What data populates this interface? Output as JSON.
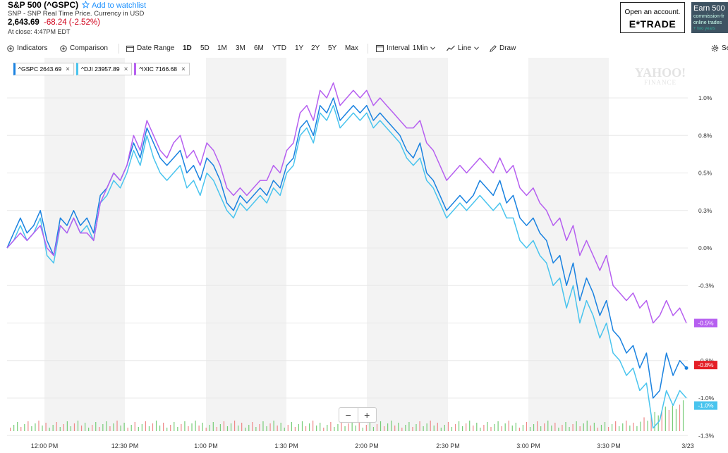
{
  "header": {
    "title": "S&P 500 (^GSPC)",
    "watchlist_label": "Add to watchlist",
    "subtitle": "SNP - SNP Real Time Price. Currency in USD",
    "price": "2,643.69",
    "change": "-68.24 (-2.52%)",
    "at_close": "At close: 4:47PM EDT"
  },
  "ads": {
    "etrade_line1": "Open an account.",
    "etrade_brand": "E*TRADE",
    "earn_line1": "Earn 500",
    "earn_line2": "commission-fr",
    "earn_line3": "online trades",
    "earn_line4": "+ two years"
  },
  "toolbar": {
    "indicators": "Indicators",
    "comparison": "Comparison",
    "date_range": "Date Range",
    "ranges": [
      "1D",
      "5D",
      "1M",
      "3M",
      "6M",
      "YTD",
      "1Y",
      "2Y",
      "5Y",
      "Max"
    ],
    "active_range": "1D",
    "interval_label": "Interval",
    "interval_value": "1Min",
    "line": "Line",
    "draw": "Draw",
    "settings": "Se"
  },
  "compare_tags": [
    {
      "label": "^GSPC 2643.69",
      "color": "#1a82e0"
    },
    {
      "label": "^DJI 23957.89",
      "color": "#49c4ee"
    },
    {
      "label": "^IXIC 7166.68",
      "color": "#b65ff0"
    }
  ],
  "watermark_line1": "YAHOO!",
  "watermark_line2": "FINANCE",
  "zoom": {
    "minus": "−",
    "plus": "+"
  },
  "chart_data": {
    "type": "line",
    "x_ticks": [
      "12:00 PM",
      "12:30 PM",
      "1:00 PM",
      "1:30 PM",
      "2:00 PM",
      "2:30 PM",
      "3:00 PM",
      "3:30 PM",
      "3/23"
    ],
    "y_ticks": [
      "1.0%",
      "0.8%",
      "0.5%",
      "0.3%",
      "0.0%",
      "-0.3%",
      "-0.5%",
      "-0.8%",
      "-1.0%",
      "-1.3%"
    ],
    "ylim": [
      -1.3,
      1.2
    ],
    "end_labels": [
      {
        "text": "-0.5%",
        "color": "#b65ff0"
      },
      {
        "text": "-0.8%",
        "color": "#e41e26"
      },
      {
        "text": "-1.0%",
        "color": "#49c4ee"
      }
    ],
    "series": [
      {
        "name": "^GSPC",
        "color": "#1a82e0",
        "values": [
          0.0,
          0.1,
          0.2,
          0.1,
          0.15,
          0.25,
          0.05,
          -0.05,
          0.2,
          0.15,
          0.25,
          0.15,
          0.2,
          0.1,
          0.35,
          0.4,
          0.5,
          0.45,
          0.55,
          0.7,
          0.6,
          0.8,
          0.7,
          0.6,
          0.55,
          0.6,
          0.65,
          0.5,
          0.55,
          0.45,
          0.6,
          0.55,
          0.45,
          0.3,
          0.25,
          0.35,
          0.3,
          0.35,
          0.4,
          0.35,
          0.45,
          0.4,
          0.55,
          0.6,
          0.8,
          0.85,
          0.75,
          0.95,
          0.9,
          1.0,
          0.85,
          0.9,
          0.95,
          0.9,
          0.95,
          0.85,
          0.9,
          0.85,
          0.8,
          0.75,
          0.65,
          0.6,
          0.7,
          0.5,
          0.45,
          0.35,
          0.25,
          0.3,
          0.35,
          0.3,
          0.35,
          0.45,
          0.4,
          0.35,
          0.45,
          0.3,
          0.35,
          0.2,
          0.15,
          0.2,
          0.1,
          0.05,
          -0.1,
          -0.05,
          -0.25,
          -0.1,
          -0.35,
          -0.2,
          -0.3,
          -0.45,
          -0.35,
          -0.55,
          -0.6,
          -0.7,
          -0.65,
          -0.8,
          -0.7,
          -1.0,
          -0.95,
          -0.7,
          -0.85,
          -0.75,
          -0.8
        ]
      },
      {
        "name": "^DJI",
        "color": "#49c4ee",
        "values": [
          0.0,
          0.05,
          0.15,
          0.05,
          0.1,
          0.2,
          -0.05,
          -0.1,
          0.15,
          0.1,
          0.2,
          0.1,
          0.15,
          0.05,
          0.3,
          0.35,
          0.45,
          0.4,
          0.5,
          0.65,
          0.55,
          0.75,
          0.6,
          0.5,
          0.45,
          0.5,
          0.55,
          0.4,
          0.45,
          0.35,
          0.5,
          0.45,
          0.35,
          0.25,
          0.2,
          0.3,
          0.25,
          0.3,
          0.35,
          0.3,
          0.4,
          0.35,
          0.5,
          0.55,
          0.75,
          0.8,
          0.7,
          0.9,
          0.85,
          0.95,
          0.8,
          0.85,
          0.9,
          0.85,
          0.9,
          0.8,
          0.85,
          0.8,
          0.75,
          0.7,
          0.6,
          0.55,
          0.6,
          0.45,
          0.4,
          0.3,
          0.2,
          0.25,
          0.3,
          0.25,
          0.3,
          0.35,
          0.3,
          0.25,
          0.3,
          0.2,
          0.2,
          0.05,
          0.0,
          0.05,
          -0.05,
          -0.1,
          -0.25,
          -0.2,
          -0.4,
          -0.25,
          -0.5,
          -0.35,
          -0.45,
          -0.6,
          -0.5,
          -0.7,
          -0.75,
          -0.85,
          -0.8,
          -0.95,
          -0.9,
          -1.2,
          -1.15,
          -0.95,
          -1.05,
          -0.95,
          -1.0
        ]
      },
      {
        "name": "^IXIC",
        "color": "#b65ff0",
        "values": [
          0.0,
          0.05,
          0.1,
          0.05,
          0.1,
          0.15,
          0.0,
          -0.05,
          0.15,
          0.1,
          0.2,
          0.1,
          0.1,
          0.05,
          0.3,
          0.4,
          0.5,
          0.45,
          0.55,
          0.75,
          0.65,
          0.85,
          0.75,
          0.65,
          0.6,
          0.7,
          0.75,
          0.6,
          0.65,
          0.55,
          0.7,
          0.65,
          0.55,
          0.4,
          0.35,
          0.4,
          0.35,
          0.4,
          0.45,
          0.45,
          0.55,
          0.5,
          0.65,
          0.7,
          0.9,
          0.95,
          0.85,
          1.05,
          1.0,
          1.1,
          0.95,
          1.0,
          1.05,
          1.0,
          1.05,
          0.95,
          1.0,
          0.95,
          0.9,
          0.85,
          0.8,
          0.8,
          0.85,
          0.7,
          0.65,
          0.55,
          0.45,
          0.5,
          0.55,
          0.5,
          0.55,
          0.6,
          0.55,
          0.5,
          0.6,
          0.5,
          0.55,
          0.4,
          0.35,
          0.4,
          0.3,
          0.25,
          0.15,
          0.2,
          0.05,
          0.15,
          -0.05,
          0.05,
          -0.05,
          -0.15,
          -0.05,
          -0.25,
          -0.3,
          -0.35,
          -0.3,
          -0.4,
          -0.35,
          -0.5,
          -0.45,
          -0.35,
          -0.45,
          -0.4,
          -0.5
        ]
      }
    ]
  }
}
